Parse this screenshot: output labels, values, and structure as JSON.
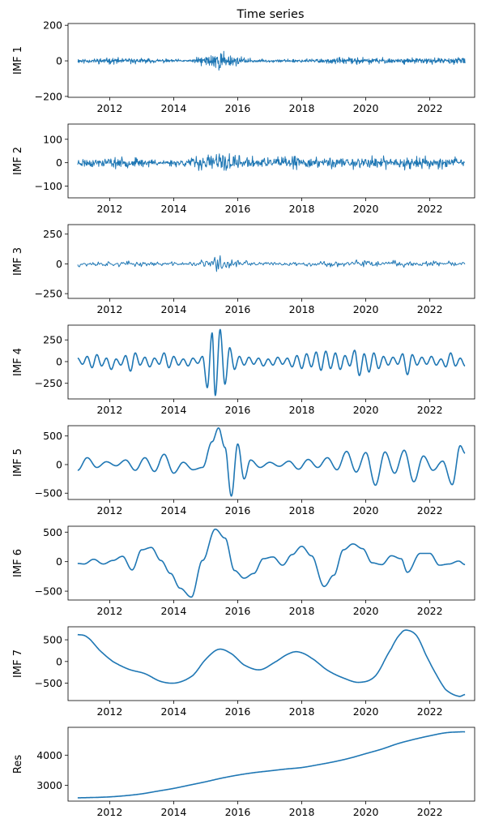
{
  "chart_data": {
    "type": "line",
    "title": "Time series",
    "series_color": "#1f77b4",
    "x_ticks": [
      2012,
      2014,
      2016,
      2018,
      2020,
      2022
    ],
    "x_range": [
      2010.7,
      2023.4
    ],
    "panels": [
      {
        "ylabel": "IMF 1",
        "ylim": [
          -205,
          210
        ],
        "yticks": [
          -200,
          0,
          200
        ],
        "kind": "noise",
        "base_amp": 16,
        "noise_seed": 11,
        "noise_step": 0.011,
        "envelope": [
          [
            2011.0,
            1.0
          ],
          [
            2012.5,
            1.2
          ],
          [
            2013.5,
            0.8
          ],
          [
            2014.5,
            0.5
          ],
          [
            2015.0,
            2.4
          ],
          [
            2015.4,
            4.8
          ],
          [
            2015.8,
            2.2
          ],
          [
            2016.3,
            1.0
          ],
          [
            2017.0,
            0.5
          ],
          [
            2018.0,
            0.9
          ],
          [
            2019.0,
            1.1
          ],
          [
            2020.0,
            1.3
          ],
          [
            2021.0,
            1.1
          ],
          [
            2022.0,
            1.2
          ],
          [
            2023.1,
            1.3
          ]
        ]
      },
      {
        "ylabel": "IMF 2",
        "ylim": [
          -150,
          165
        ],
        "yticks": [
          -100,
          0,
          100
        ],
        "kind": "noise",
        "base_amp": 19,
        "noise_seed": 23,
        "noise_step": 0.015,
        "envelope": [
          [
            2011.0,
            1.2
          ],
          [
            2012.0,
            1.4
          ],
          [
            2013.0,
            1.1
          ],
          [
            2014.0,
            0.8
          ],
          [
            2014.8,
            1.8
          ],
          [
            2015.4,
            3.4
          ],
          [
            2016.0,
            2.0
          ],
          [
            2016.6,
            1.2
          ],
          [
            2017.5,
            1.5
          ],
          [
            2018.5,
            1.6
          ],
          [
            2019.5,
            1.7
          ],
          [
            2020.5,
            1.5
          ],
          [
            2021.5,
            1.6
          ],
          [
            2022.5,
            1.4
          ],
          [
            2023.1,
            1.2
          ]
        ]
      },
      {
        "ylabel": "IMF 3",
        "ylim": [
          -290,
          330
        ],
        "yticks": [
          -250,
          0,
          250
        ],
        "kind": "noise",
        "base_amp": 22,
        "noise_seed": 37,
        "noise_step": 0.028,
        "envelope": [
          [
            2011.0,
            1.5
          ],
          [
            2012.0,
            1.2
          ],
          [
            2013.0,
            1.0
          ],
          [
            2014.0,
            0.8
          ],
          [
            2014.7,
            1.2
          ],
          [
            2015.3,
            5.6
          ],
          [
            2015.7,
            3.5
          ],
          [
            2016.2,
            1.6
          ],
          [
            2017.0,
            0.9
          ],
          [
            2018.0,
            0.8
          ],
          [
            2019.0,
            1.2
          ],
          [
            2020.0,
            1.7
          ],
          [
            2021.0,
            1.5
          ],
          [
            2022.0,
            1.3
          ],
          [
            2023.1,
            1.0
          ]
        ]
      },
      {
        "ylabel": "IMF 4",
        "ylim": [
          -430,
          420
        ],
        "yticks": [
          -250,
          0,
          250
        ],
        "kind": "osc",
        "points": [
          [
            2011.0,
            40
          ],
          [
            2011.15,
            -30
          ],
          [
            2011.3,
            60
          ],
          [
            2011.45,
            -70
          ],
          [
            2011.6,
            80
          ],
          [
            2011.75,
            -50
          ],
          [
            2011.9,
            40
          ],
          [
            2012.05,
            -90
          ],
          [
            2012.2,
            30
          ],
          [
            2012.35,
            -40
          ],
          [
            2012.5,
            70
          ],
          [
            2012.65,
            -110
          ],
          [
            2012.8,
            100
          ],
          [
            2012.95,
            -40
          ],
          [
            2013.1,
            50
          ],
          [
            2013.25,
            -60
          ],
          [
            2013.4,
            40
          ],
          [
            2013.55,
            -30
          ],
          [
            2013.7,
            100
          ],
          [
            2013.85,
            -70
          ],
          [
            2014.0,
            60
          ],
          [
            2014.15,
            -40
          ],
          [
            2014.3,
            30
          ],
          [
            2014.45,
            -50
          ],
          [
            2014.6,
            40
          ],
          [
            2014.75,
            -20
          ],
          [
            2014.9,
            60
          ],
          [
            2015.05,
            -300
          ],
          [
            2015.2,
            330
          ],
          [
            2015.3,
            -390
          ],
          [
            2015.45,
            370
          ],
          [
            2015.6,
            -260
          ],
          [
            2015.75,
            160
          ],
          [
            2015.9,
            -90
          ],
          [
            2016.05,
            60
          ],
          [
            2016.2,
            -40
          ],
          [
            2016.35,
            50
          ],
          [
            2016.5,
            -30
          ],
          [
            2016.65,
            40
          ],
          [
            2016.8,
            -50
          ],
          [
            2016.95,
            30
          ],
          [
            2017.1,
            -40
          ],
          [
            2017.25,
            50
          ],
          [
            2017.4,
            -30
          ],
          [
            2017.55,
            40
          ],
          [
            2017.7,
            -60
          ],
          [
            2017.85,
            70
          ],
          [
            2018.0,
            -80
          ],
          [
            2018.15,
            90
          ],
          [
            2018.3,
            -60
          ],
          [
            2018.45,
            110
          ],
          [
            2018.6,
            -100
          ],
          [
            2018.75,
            120
          ],
          [
            2018.9,
            -80
          ],
          [
            2019.05,
            100
          ],
          [
            2019.2,
            -90
          ],
          [
            2019.35,
            70
          ],
          [
            2019.5,
            -50
          ],
          [
            2019.65,
            130
          ],
          [
            2019.8,
            -160
          ],
          [
            2019.95,
            90
          ],
          [
            2020.1,
            -120
          ],
          [
            2020.25,
            100
          ],
          [
            2020.4,
            -80
          ],
          [
            2020.55,
            60
          ],
          [
            2020.7,
            -40
          ],
          [
            2020.85,
            50
          ],
          [
            2021.0,
            -30
          ],
          [
            2021.15,
            90
          ],
          [
            2021.3,
            -150
          ],
          [
            2021.45,
            80
          ],
          [
            2021.6,
            -40
          ],
          [
            2021.75,
            50
          ],
          [
            2021.9,
            -30
          ],
          [
            2022.05,
            60
          ],
          [
            2022.2,
            -40
          ],
          [
            2022.35,
            30
          ],
          [
            2022.5,
            -60
          ],
          [
            2022.65,
            100
          ],
          [
            2022.8,
            -50
          ],
          [
            2022.95,
            40
          ],
          [
            2023.1,
            -50
          ]
        ]
      },
      {
        "ylabel": "IMF 5",
        "ylim": [
          -610,
          680
        ],
        "yticks": [
          -500,
          0,
          500
        ],
        "kind": "osc",
        "points": [
          [
            2011.0,
            -100
          ],
          [
            2011.3,
            120
          ],
          [
            2011.6,
            -50
          ],
          [
            2011.9,
            50
          ],
          [
            2012.2,
            -20
          ],
          [
            2012.5,
            80
          ],
          [
            2012.8,
            -100
          ],
          [
            2013.1,
            120
          ],
          [
            2013.4,
            -120
          ],
          [
            2013.7,
            180
          ],
          [
            2014.0,
            -150
          ],
          [
            2014.3,
            40
          ],
          [
            2014.6,
            -90
          ],
          [
            2014.9,
            -50
          ],
          [
            2015.2,
            400
          ],
          [
            2015.4,
            640
          ],
          [
            2015.6,
            300
          ],
          [
            2015.8,
            -550
          ],
          [
            2016.0,
            360
          ],
          [
            2016.2,
            -250
          ],
          [
            2016.4,
            80
          ],
          [
            2016.7,
            -50
          ],
          [
            2017.0,
            40
          ],
          [
            2017.3,
            -30
          ],
          [
            2017.6,
            60
          ],
          [
            2017.9,
            -80
          ],
          [
            2018.2,
            90
          ],
          [
            2018.5,
            -50
          ],
          [
            2018.8,
            120
          ],
          [
            2019.1,
            -90
          ],
          [
            2019.4,
            230
          ],
          [
            2019.7,
            -130
          ],
          [
            2020.0,
            210
          ],
          [
            2020.3,
            -360
          ],
          [
            2020.6,
            220
          ],
          [
            2020.9,
            -150
          ],
          [
            2021.2,
            250
          ],
          [
            2021.5,
            -300
          ],
          [
            2021.8,
            150
          ],
          [
            2022.1,
            -100
          ],
          [
            2022.4,
            60
          ],
          [
            2022.7,
            -350
          ],
          [
            2022.95,
            330
          ],
          [
            2023.1,
            200
          ]
        ]
      },
      {
        "ylabel": "IMF 6",
        "ylim": [
          -650,
          600
        ],
        "yticks": [
          -500,
          0,
          500
        ],
        "kind": "osc",
        "points": [
          [
            2011.0,
            -30
          ],
          [
            2011.2,
            -40
          ],
          [
            2011.5,
            40
          ],
          [
            2011.8,
            -40
          ],
          [
            2012.1,
            20
          ],
          [
            2012.4,
            90
          ],
          [
            2012.7,
            -140
          ],
          [
            2013.0,
            200
          ],
          [
            2013.3,
            240
          ],
          [
            2013.6,
            20
          ],
          [
            2013.9,
            -200
          ],
          [
            2014.2,
            -450
          ],
          [
            2014.55,
            -600
          ],
          [
            2014.9,
            20
          ],
          [
            2015.3,
            550
          ],
          [
            2015.6,
            400
          ],
          [
            2015.9,
            -150
          ],
          [
            2016.2,
            -280
          ],
          [
            2016.5,
            -200
          ],
          [
            2016.8,
            50
          ],
          [
            2017.1,
            80
          ],
          [
            2017.4,
            -60
          ],
          [
            2017.7,
            120
          ],
          [
            2018.0,
            260
          ],
          [
            2018.3,
            100
          ],
          [
            2018.7,
            -420
          ],
          [
            2019.0,
            -230
          ],
          [
            2019.3,
            200
          ],
          [
            2019.6,
            300
          ],
          [
            2019.9,
            220
          ],
          [
            2020.2,
            -20
          ],
          [
            2020.5,
            -50
          ],
          [
            2020.8,
            100
          ],
          [
            2021.1,
            50
          ],
          [
            2021.3,
            -180
          ],
          [
            2021.7,
            140
          ],
          [
            2022.0,
            140
          ],
          [
            2022.3,
            -60
          ],
          [
            2022.6,
            -40
          ],
          [
            2022.9,
            10
          ],
          [
            2023.1,
            -50
          ]
        ]
      },
      {
        "ylabel": "IMF 7",
        "ylim": [
          -900,
          800
        ],
        "yticks": [
          -500,
          0,
          500
        ],
        "kind": "smooth",
        "points": [
          [
            2011.0,
            620
          ],
          [
            2011.3,
            560
          ],
          [
            2011.7,
            250
          ],
          [
            2012.1,
            0
          ],
          [
            2012.6,
            -180
          ],
          [
            2013.1,
            -280
          ],
          [
            2013.6,
            -460
          ],
          [
            2014.1,
            -490
          ],
          [
            2014.6,
            -320
          ],
          [
            2015.0,
            50
          ],
          [
            2015.4,
            280
          ],
          [
            2015.8,
            180
          ],
          [
            2016.2,
            -80
          ],
          [
            2016.7,
            -190
          ],
          [
            2017.2,
            0
          ],
          [
            2017.6,
            180
          ],
          [
            2017.9,
            220
          ],
          [
            2018.3,
            80
          ],
          [
            2018.8,
            -200
          ],
          [
            2019.3,
            -380
          ],
          [
            2019.8,
            -480
          ],
          [
            2020.3,
            -330
          ],
          [
            2020.8,
            300
          ],
          [
            2021.1,
            650
          ],
          [
            2021.3,
            720
          ],
          [
            2021.6,
            580
          ],
          [
            2021.9,
            120
          ],
          [
            2022.2,
            -300
          ],
          [
            2022.5,
            -650
          ],
          [
            2022.9,
            -800
          ],
          [
            2023.1,
            -760
          ]
        ]
      },
      {
        "ylabel": "Res",
        "ylim": [
          2480,
          4920
        ],
        "yticks": [
          3000,
          4000
        ],
        "kind": "smooth",
        "points": [
          [
            2011.0,
            2590
          ],
          [
            2011.5,
            2600
          ],
          [
            2012.0,
            2620
          ],
          [
            2012.5,
            2660
          ],
          [
            2013.0,
            2720
          ],
          [
            2013.5,
            2810
          ],
          [
            2014.0,
            2900
          ],
          [
            2014.5,
            3010
          ],
          [
            2015.0,
            3120
          ],
          [
            2015.5,
            3240
          ],
          [
            2016.0,
            3340
          ],
          [
            2016.5,
            3420
          ],
          [
            2017.0,
            3480
          ],
          [
            2017.5,
            3540
          ],
          [
            2018.0,
            3590
          ],
          [
            2018.5,
            3680
          ],
          [
            2019.0,
            3780
          ],
          [
            2019.5,
            3900
          ],
          [
            2020.0,
            4050
          ],
          [
            2020.5,
            4200
          ],
          [
            2021.0,
            4380
          ],
          [
            2021.5,
            4520
          ],
          [
            2022.0,
            4640
          ],
          [
            2022.5,
            4740
          ],
          [
            2023.0,
            4770
          ],
          [
            2023.1,
            4770
          ]
        ]
      }
    ]
  }
}
